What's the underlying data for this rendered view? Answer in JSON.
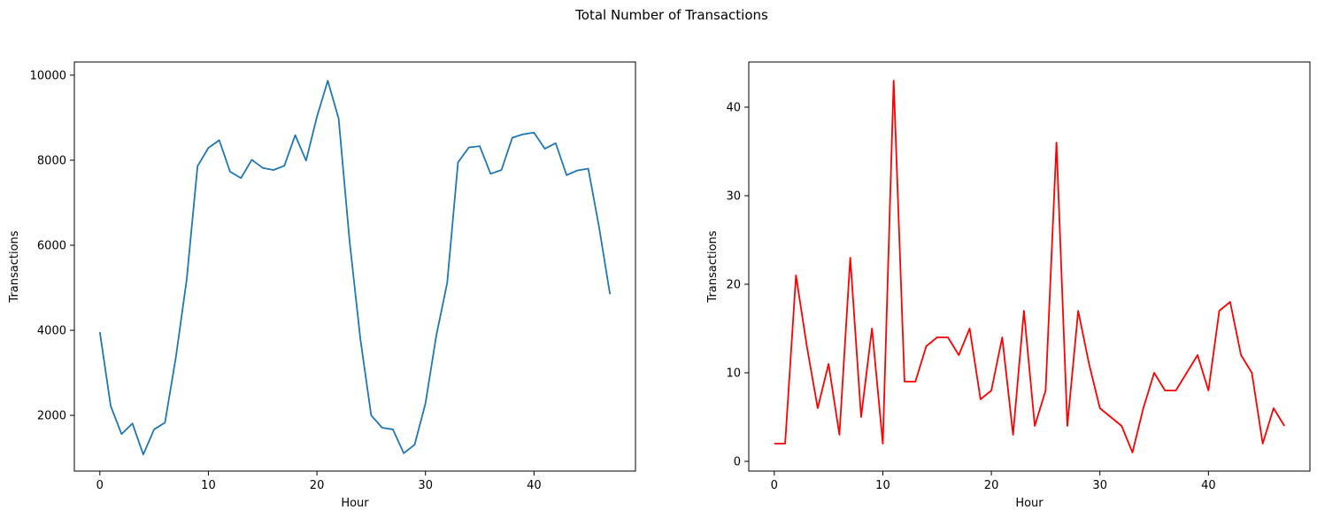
{
  "figure_title": "Total Number of Transactions",
  "chart_data": [
    {
      "type": "line",
      "xlabel": "Hour",
      "ylabel": "Transactions",
      "xlim": [
        -2.35,
        49.35
      ],
      "ylim": [
        690,
        10310
      ],
      "xticks": [
        0,
        10,
        20,
        30,
        40
      ],
      "yticks": [
        2000,
        4000,
        6000,
        8000,
        10000
      ],
      "grid": false,
      "series": [
        {
          "color": "#1f77b4",
          "x": [
            0,
            1,
            2,
            3,
            4,
            5,
            6,
            7,
            8,
            9,
            10,
            11,
            12,
            13,
            14,
            15,
            16,
            17,
            18,
            19,
            20,
            21,
            22,
            23,
            24,
            25,
            26,
            27,
            28,
            29,
            30,
            31,
            32,
            33,
            34,
            35,
            36,
            37,
            38,
            39,
            40,
            41,
            42,
            43,
            44,
            45,
            46,
            47
          ],
          "values": [
            3960,
            2220,
            1560,
            1810,
            1080,
            1670,
            1830,
            3360,
            5190,
            7860,
            8290,
            8470,
            7730,
            7580,
            8010,
            7820,
            7770,
            7870,
            8590,
            7990,
            9020,
            9870,
            8980,
            6120,
            3800,
            2000,
            1710,
            1670,
            1110,
            1310,
            2280,
            3880,
            5110,
            7950,
            8300,
            8330,
            7680,
            7770,
            8530,
            8610,
            8650,
            8270,
            8400,
            7650,
            7760,
            7800,
            6420,
            4850
          ]
        }
      ]
    },
    {
      "type": "line",
      "xlabel": "Hour",
      "ylabel": "Transactions",
      "xlim": [
        -2.35,
        49.35
      ],
      "ylim": [
        -1.1,
        45.1
      ],
      "xticks": [
        0,
        10,
        20,
        30,
        40
      ],
      "yticks": [
        0,
        10,
        20,
        30,
        40
      ],
      "grid": false,
      "series": [
        {
          "color": "#ff0000",
          "x": [
            0,
            1,
            2,
            3,
            4,
            5,
            6,
            7,
            8,
            9,
            10,
            11,
            12,
            13,
            14,
            15,
            16,
            17,
            18,
            19,
            20,
            21,
            22,
            23,
            24,
            25,
            26,
            27,
            28,
            29,
            30,
            31,
            32,
            33,
            34,
            35,
            36,
            37,
            38,
            39,
            40,
            41,
            42,
            43,
            44,
            45,
            46,
            47
          ],
          "values": [
            2,
            2,
            21,
            13,
            6,
            11,
            3,
            23,
            5,
            15,
            2,
            43,
            9,
            9,
            13,
            14,
            14,
            12,
            15,
            7,
            8,
            14,
            3,
            17,
            4,
            8,
            36,
            4,
            17,
            11,
            6,
            5,
            4,
            1,
            6,
            10,
            8,
            8,
            10,
            12,
            8,
            17,
            18,
            12,
            10,
            2,
            6,
            4
          ]
        }
      ]
    }
  ]
}
